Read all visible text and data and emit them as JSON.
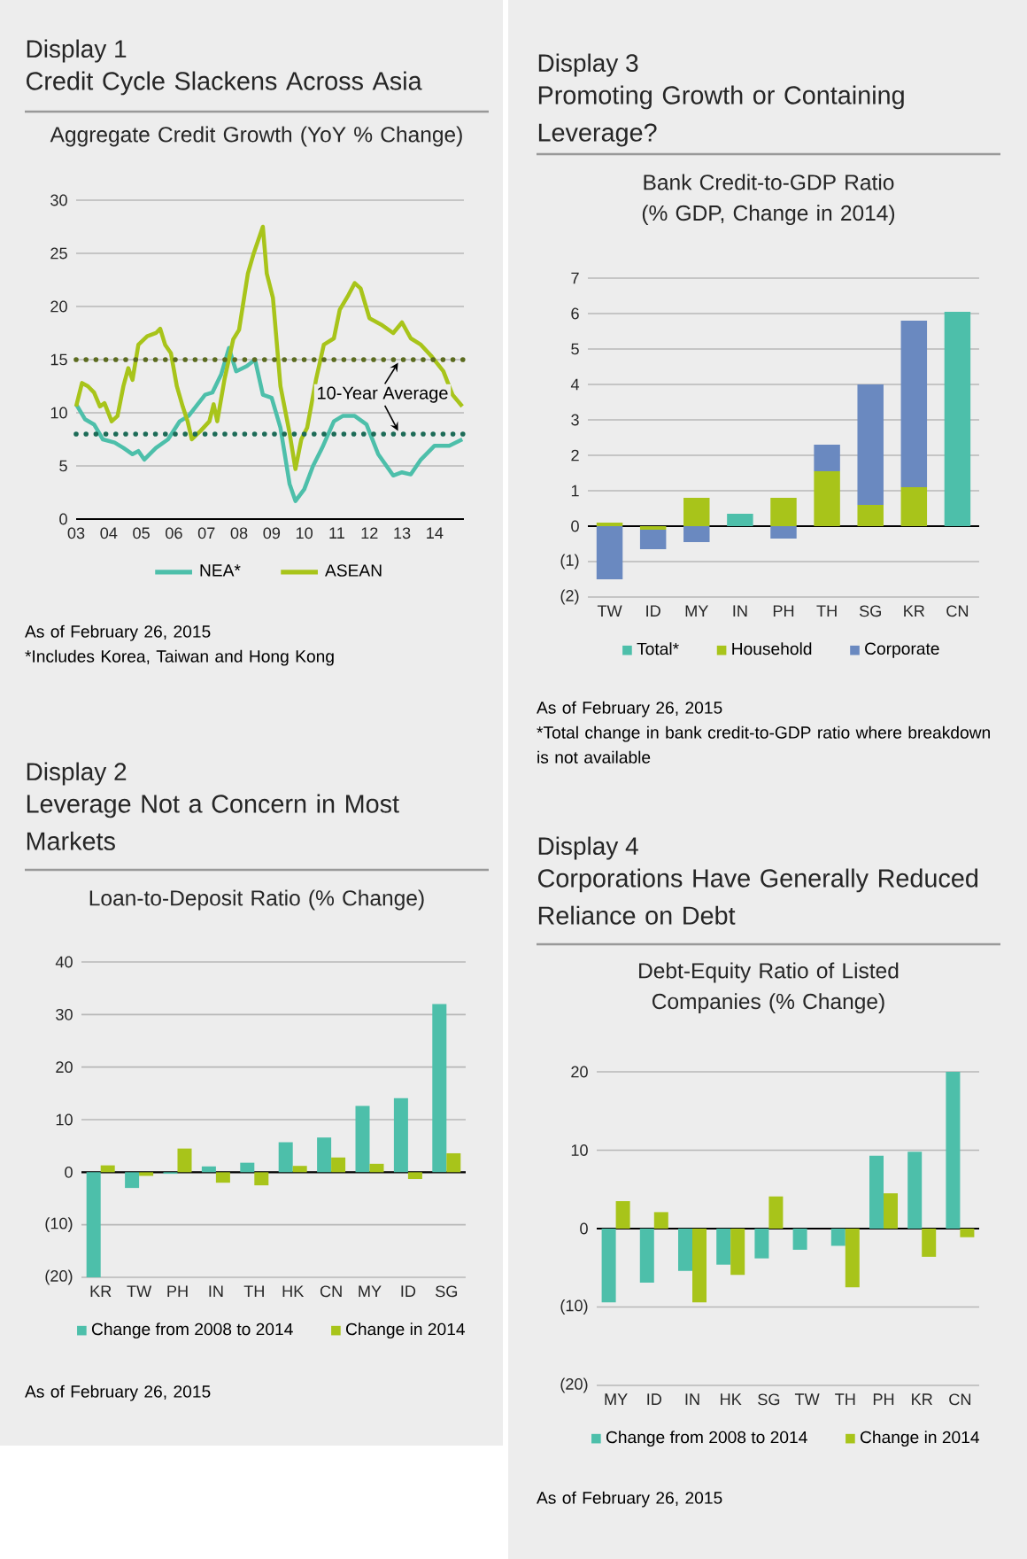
{
  "chart_data": [
    {
      "type": "line",
      "title": "Credit Cycle Slackens Across Asia",
      "subtitle": "Aggregate Credit Growth (YoY % Change)",
      "annotations": [
        "Display 1",
        "As of February 26, 2015",
        "*Includes Korea, Taiwan and Hong Kong",
        "10-Year Average"
      ],
      "series": [
        {
          "name": "NEA*",
          "color": "#4dbfaa",
          "x": [
            2003.0,
            2003.27,
            2003.55,
            2003.82,
            2004.18,
            2004.45,
            2004.73,
            2004.91,
            2005.09,
            2005.45,
            2005.82,
            2006.18,
            2006.45,
            2006.73,
            2006.96,
            2007.18,
            2007.45,
            2007.69,
            2007.91,
            2008.24,
            2008.49,
            2008.73,
            2009.0,
            2009.27,
            2009.55,
            2009.73,
            2010.0,
            2010.27,
            2010.55,
            2010.91,
            2011.18,
            2011.55,
            2011.91,
            2012.27,
            2012.73,
            2013.0,
            2013.27,
            2013.58,
            2014.0,
            2014.45,
            2014.85
          ],
          "values": [
            10.8,
            9.4,
            8.9,
            7.5,
            7.2,
            6.7,
            6.1,
            6.4,
            5.6,
            6.7,
            7.5,
            9.2,
            9.7,
            10.8,
            11.7,
            11.9,
            13.6,
            16.1,
            13.9,
            14.4,
            15.0,
            11.7,
            11.4,
            8.6,
            3.3,
            1.7,
            2.8,
            5.0,
            6.7,
            9.2,
            9.7,
            9.7,
            8.9,
            6.1,
            4.1,
            4.4,
            4.2,
            5.6,
            6.9,
            6.9,
            7.5
          ]
        },
        {
          "name": "ASEAN",
          "color": "#a8c41a",
          "x": [
            2003.0,
            2003.18,
            2003.36,
            2003.55,
            2003.73,
            2003.87,
            2004.09,
            2004.27,
            2004.45,
            2004.6,
            2004.73,
            2004.91,
            2005.18,
            2005.45,
            2005.58,
            2005.73,
            2005.91,
            2006.09,
            2006.27,
            2006.42,
            2006.55,
            2006.82,
            2007.09,
            2007.22,
            2007.33,
            2007.55,
            2007.82,
            2008.0,
            2008.27,
            2008.45,
            2008.73,
            2008.85,
            2009.04,
            2009.27,
            2009.55,
            2009.73,
            2009.91,
            2010.09,
            2010.36,
            2010.6,
            2010.91,
            2011.09,
            2011.36,
            2011.55,
            2011.73,
            2012.0,
            2012.36,
            2012.73,
            2013.0,
            2013.27,
            2013.58,
            2013.91,
            2014.27,
            2014.55,
            2014.85
          ],
          "values": [
            10.6,
            12.8,
            12.5,
            11.9,
            10.6,
            10.9,
            9.2,
            9.7,
            12.5,
            14.2,
            13.1,
            16.4,
            17.2,
            17.5,
            17.9,
            16.4,
            15.6,
            12.5,
            10.6,
            9.2,
            7.5,
            8.3,
            9.2,
            10.8,
            9.2,
            13.1,
            16.9,
            17.8,
            23.1,
            25.0,
            27.5,
            23.1,
            20.8,
            12.5,
            8.1,
            4.7,
            7.5,
            8.6,
            13.1,
            16.4,
            17.0,
            19.7,
            21.1,
            22.2,
            21.7,
            18.9,
            18.3,
            17.5,
            18.5,
            17.0,
            16.4,
            15.3,
            13.9,
            11.7,
            10.6
          ]
        }
      ],
      "xlim": [
        2003,
        2014.9
      ],
      "xticks": [
        {
          "value": 2003,
          "label": "03"
        },
        {
          "value": 2004,
          "label": "04"
        },
        {
          "value": 2005,
          "label": "05"
        },
        {
          "value": 2006,
          "label": "06"
        },
        {
          "value": 2007,
          "label": "07"
        },
        {
          "value": 2008,
          "label": "08"
        },
        {
          "value": 2009,
          "label": "09"
        },
        {
          "value": 2010,
          "label": "10"
        },
        {
          "value": 2011,
          "label": "11"
        },
        {
          "value": 2012,
          "label": "12"
        },
        {
          "value": 2013,
          "label": "13"
        },
        {
          "value": 2014,
          "label": "14"
        }
      ],
      "ylim": [
        0,
        30
      ],
      "yticks": [
        0,
        5,
        10,
        15,
        20,
        25,
        30
      ],
      "grid": "y",
      "legend": "bottom",
      "ref_lines": [
        {
          "axis": "y",
          "value": 15,
          "color": "#5b6b1f",
          "line_style": "dotted"
        },
        {
          "axis": "y",
          "value": 8,
          "color": "#1d6b57",
          "line_style": "dotted"
        }
      ]
    },
    {
      "type": "bar",
      "stacked": true,
      "title": "Promoting Growth or Containing Leverage?",
      "subtitle": "Bank Credit-to-GDP Ratio (% GDP, Change in 2014)",
      "annotations": [
        "Display 3",
        "As of February 26, 2015",
        "*Total change in bank credit-to-GDP ratio where breakdown is not available"
      ],
      "categories": [
        "TW",
        "ID",
        "MY",
        "IN",
        "PH",
        "TH",
        "SG",
        "KR",
        "CN"
      ],
      "series": [
        {
          "name": "Total*",
          "color": "#4dbfaa",
          "values": [
            null,
            null,
            null,
            0.35,
            null,
            null,
            null,
            null,
            6.05
          ]
        },
        {
          "name": "Household",
          "color": "#a8c41a",
          "values": [
            0.1,
            -0.1,
            0.8,
            null,
            0.8,
            1.55,
            0.6,
            1.1,
            null
          ]
        },
        {
          "name": "Corporate",
          "color": "#6a89c0",
          "values": [
            -1.5,
            -0.55,
            -0.45,
            null,
            -0.35,
            0.75,
            3.4,
            4.7,
            null
          ]
        }
      ],
      "ylim": [
        -2,
        7
      ],
      "yticks": [
        {
          "value": -2,
          "label": "(2)"
        },
        {
          "value": -1,
          "label": "(1)"
        },
        0,
        1,
        2,
        3,
        4,
        5,
        6,
        7
      ],
      "grid": "y",
      "legend": "bottom"
    },
    {
      "type": "bar",
      "title": "Leverage Not a Concern in Most Markets",
      "subtitle": "Loan-to-Deposit Ratio (% Change)",
      "annotations": [
        "Display 2",
        "As of February 26, 2015"
      ],
      "categories": [
        "KR",
        "TW",
        "PH",
        "IN",
        "TH",
        "HK",
        "CN",
        "MY",
        "ID",
        "SG"
      ],
      "series": [
        {
          "name": "Change from 2008 to 2014",
          "color": "#4dbfaa",
          "values": [
            -20,
            -3.0,
            -0.3,
            1.1,
            1.8,
            5.7,
            6.6,
            12.6,
            14.1,
            32
          ]
        },
        {
          "name": "Change in 2014",
          "color": "#a8c41a",
          "values": [
            1.3,
            -0.7,
            4.5,
            -2.0,
            -2.5,
            1.2,
            2.8,
            1.6,
            -1.3,
            3.6
          ]
        }
      ],
      "ylim": [
        -20,
        40
      ],
      "yticks": [
        {
          "value": -20,
          "label": "(20)"
        },
        {
          "value": -10,
          "label": "(10)"
        },
        0,
        10,
        20,
        30,
        40
      ],
      "grid": "y",
      "legend": "bottom"
    },
    {
      "type": "bar",
      "title": "Corporations Have Generally Reduced Reliance on Debt",
      "subtitle": "Debt-Equity Ratio of Listed Companies (% Change)",
      "annotations": [
        "Display 4",
        "As of February 26, 2015"
      ],
      "categories": [
        "MY",
        "ID",
        "IN",
        "HK",
        "SG",
        "TW",
        "TH",
        "PH",
        "KR",
        "CN"
      ],
      "series": [
        {
          "name": "Change from 2008 to 2014",
          "color": "#4dbfaa",
          "values": [
            -9.4,
            -6.9,
            -5.4,
            -4.6,
            -3.8,
            -2.7,
            -2.2,
            9.3,
            9.8,
            20
          ]
        },
        {
          "name": "Change in 2014",
          "color": "#a8c41a",
          "values": [
            3.5,
            2.1,
            -9.4,
            -5.9,
            4.1,
            null,
            -7.5,
            4.5,
            -3.6,
            -1.1
          ]
        }
      ],
      "ylim": [
        -20,
        20
      ],
      "yticks": [
        {
          "value": -20,
          "label": "(20)"
        },
        {
          "value": -10,
          "label": "(10)"
        },
        0,
        10,
        20
      ],
      "grid": "y",
      "legend": "bottom"
    }
  ]
}
